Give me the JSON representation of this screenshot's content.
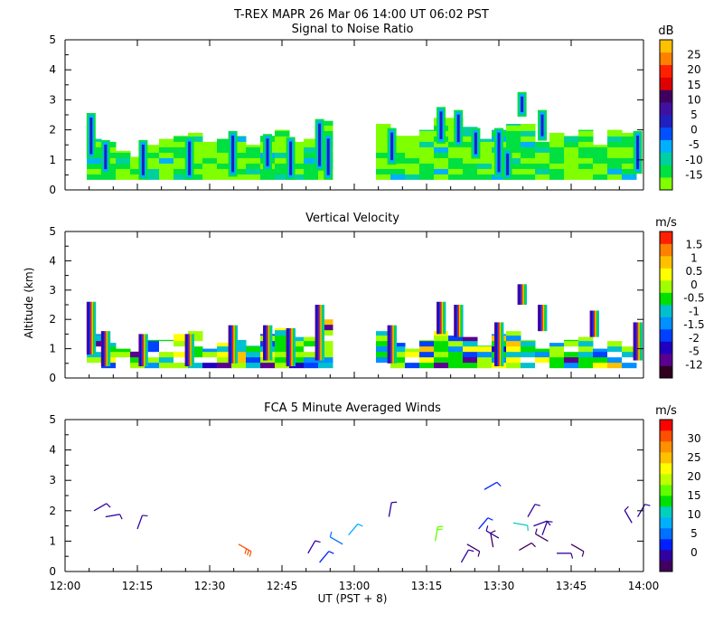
{
  "figure_title": "T-REX   MAPR 26 Mar 06   14:00 UT   06:02   PST",
  "x_axis": {
    "label": "UT  (PST + 8)",
    "range_hours": [
      12.0,
      14.0
    ],
    "tick_labels": [
      "12:00",
      "12:15",
      "12:30",
      "12:45",
      "13:00",
      "13:15",
      "13:30",
      "13:45",
      "14:00"
    ]
  },
  "y_axis_label": "Altitude (km)",
  "chart_data": [
    {
      "type": "heatmap",
      "title": "Signal to Noise Ratio",
      "units": "dB",
      "ylim": [
        0,
        5
      ],
      "ytick_labels": [
        "0",
        "1",
        "2",
        "3",
        "4",
        "5"
      ],
      "colorbar_labels": [
        "-15",
        "-10",
        "-5",
        "0",
        "5",
        "10",
        "15",
        "20",
        "25"
      ],
      "colors": [
        "#80ff00",
        "#00e040",
        "#00d0a0",
        "#00b0ff",
        "#0050ff",
        "#2020c0",
        "#4010a0",
        "#400060",
        "#e00000",
        "#ff2000",
        "#ff8000",
        "#ffc000"
      ],
      "data_gap_hours": [
        12.92,
        13.08
      ],
      "data_floor_km": 0.35,
      "columns": [
        {
          "t": 12.1,
          "top": 1.7
        },
        {
          "t": 12.15,
          "top": 1.6
        },
        {
          "t": 12.2,
          "top": 1.3
        },
        {
          "t": 12.25,
          "top": 1.1
        },
        {
          "t": 12.3,
          "top": 1.5
        },
        {
          "t": 12.35,
          "top": 1.7
        },
        {
          "t": 12.4,
          "top": 1.8
        },
        {
          "t": 12.45,
          "top": 1.9
        },
        {
          "t": 12.5,
          "top": 1.6
        },
        {
          "t": 12.55,
          "top": 1.7
        },
        {
          "t": 12.6,
          "top": 1.8
        },
        {
          "t": 12.65,
          "top": 1.5
        },
        {
          "t": 12.7,
          "top": 1.8
        },
        {
          "t": 12.75,
          "top": 2.0
        },
        {
          "t": 12.8,
          "top": 1.6
        },
        {
          "t": 12.85,
          "top": 1.7
        },
        {
          "t": 12.9,
          "top": 2.3
        },
        {
          "t": 13.1,
          "top": 2.2
        },
        {
          "t": 13.15,
          "top": 1.8
        },
        {
          "t": 13.2,
          "top": 1.8
        },
        {
          "t": 13.25,
          "top": 2.0
        },
        {
          "t": 13.3,
          "top": 2.4
        },
        {
          "t": 13.35,
          "top": 2.4
        },
        {
          "t": 13.4,
          "top": 2.1
        },
        {
          "t": 13.45,
          "top": 1.7
        },
        {
          "t": 13.5,
          "top": 2.0
        },
        {
          "t": 13.55,
          "top": 2.2
        },
        {
          "t": 13.6,
          "top": 2.2
        },
        {
          "t": 13.65,
          "top": 1.6
        },
        {
          "t": 13.7,
          "top": 1.9
        },
        {
          "t": 13.75,
          "top": 1.8
        },
        {
          "t": 13.8,
          "top": 2.0
        },
        {
          "t": 13.85,
          "top": 1.5
        },
        {
          "t": 13.9,
          "top": 2.0
        },
        {
          "t": 13.95,
          "top": 1.9
        }
      ],
      "plumes": [
        {
          "t": 12.09,
          "y0": 1.1,
          "y1": 2.5
        },
        {
          "t": 12.14,
          "y0": 0.6,
          "y1": 1.6
        },
        {
          "t": 12.27,
          "y0": 0.4,
          "y1": 1.6
        },
        {
          "t": 12.43,
          "y0": 0.4,
          "y1": 1.7
        },
        {
          "t": 12.58,
          "y0": 0.5,
          "y1": 1.9
        },
        {
          "t": 12.7,
          "y0": 0.7,
          "y1": 1.8
        },
        {
          "t": 12.78,
          "y0": 0.4,
          "y1": 1.7
        },
        {
          "t": 12.88,
          "y0": 0.7,
          "y1": 2.3
        },
        {
          "t": 12.91,
          "y0": 0.4,
          "y1": 1.8
        },
        {
          "t": 13.13,
          "y0": 0.9,
          "y1": 2.0
        },
        {
          "t": 13.3,
          "y0": 1.6,
          "y1": 2.7
        },
        {
          "t": 13.36,
          "y0": 1.5,
          "y1": 2.6
        },
        {
          "t": 13.42,
          "y0": 1.1,
          "y1": 2.0
        },
        {
          "t": 13.5,
          "y0": 0.5,
          "y1": 2.0
        },
        {
          "t": 13.53,
          "y0": 0.4,
          "y1": 1.3
        },
        {
          "t": 13.58,
          "y0": 2.5,
          "y1": 3.2
        },
        {
          "t": 13.65,
          "y0": 1.7,
          "y1": 2.6
        },
        {
          "t": 13.98,
          "y0": 0.6,
          "y1": 1.9
        }
      ]
    },
    {
      "type": "heatmap",
      "title": "Vertical Velocity",
      "units": "m/s",
      "ylim": [
        0,
        5
      ],
      "ytick_labels": [
        "0",
        "1",
        "2",
        "3",
        "4",
        "5"
      ],
      "colorbar_labels": [
        "-12",
        "-5",
        "-2",
        "-1.5",
        "-1",
        "-0.5",
        "0",
        "0.5",
        "1",
        "1.5"
      ],
      "colors": [
        "#300020",
        "#5a0090",
        "#2000c0",
        "#0040ff",
        "#0090ff",
        "#00c0d0",
        "#00e000",
        "#a0ff00",
        "#ffff00",
        "#ffc000",
        "#ff8000",
        "#ff2000"
      ],
      "data_gap_hours": [
        12.92,
        13.08
      ],
      "data_floor_km": 0.35,
      "columns": [
        {
          "t": 12.1,
          "top": 1.5
        },
        {
          "t": 12.15,
          "top": 1.2
        },
        {
          "t": 12.2,
          "top": 1.0
        },
        {
          "t": 12.25,
          "top": 0.9
        },
        {
          "t": 12.3,
          "top": 1.3
        },
        {
          "t": 12.35,
          "top": 1.3
        },
        {
          "t": 12.4,
          "top": 1.5
        },
        {
          "t": 12.45,
          "top": 1.6
        },
        {
          "t": 12.5,
          "top": 1.0
        },
        {
          "t": 12.55,
          "top": 1.2
        },
        {
          "t": 12.6,
          "top": 1.3
        },
        {
          "t": 12.65,
          "top": 1.1
        },
        {
          "t": 12.7,
          "top": 1.5
        },
        {
          "t": 12.75,
          "top": 1.7
        },
        {
          "t": 12.8,
          "top": 1.4
        },
        {
          "t": 12.85,
          "top": 1.4
        },
        {
          "t": 12.9,
          "top": 2.0
        },
        {
          "t": 13.1,
          "top": 1.6
        },
        {
          "t": 13.15,
          "top": 1.2
        },
        {
          "t": 13.2,
          "top": 1.0
        },
        {
          "t": 13.25,
          "top": 1.3
        },
        {
          "t": 13.3,
          "top": 1.6
        },
        {
          "t": 13.35,
          "top": 1.6
        },
        {
          "t": 13.4,
          "top": 1.4
        },
        {
          "t": 13.45,
          "top": 1.1
        },
        {
          "t": 13.5,
          "top": 1.5
        },
        {
          "t": 13.55,
          "top": 1.6
        },
        {
          "t": 13.6,
          "top": 1.3
        },
        {
          "t": 13.65,
          "top": 1.0
        },
        {
          "t": 13.7,
          "top": 1.2
        },
        {
          "t": 13.75,
          "top": 1.3
        },
        {
          "t": 13.8,
          "top": 1.4
        },
        {
          "t": 13.85,
          "top": 1.0
        },
        {
          "t": 13.9,
          "top": 1.4
        },
        {
          "t": 13.95,
          "top": 1.2
        }
      ],
      "plumes": [
        {
          "t": 12.09,
          "y0": 0.8,
          "y1": 2.6
        },
        {
          "t": 12.14,
          "y0": 0.4,
          "y1": 1.6
        },
        {
          "t": 12.27,
          "y0": 0.4,
          "y1": 1.5
        },
        {
          "t": 12.43,
          "y0": 0.4,
          "y1": 1.5
        },
        {
          "t": 12.58,
          "y0": 0.5,
          "y1": 1.8
        },
        {
          "t": 12.7,
          "y0": 0.6,
          "y1": 1.8
        },
        {
          "t": 12.78,
          "y0": 0.4,
          "y1": 1.7
        },
        {
          "t": 12.88,
          "y0": 0.6,
          "y1": 2.5
        },
        {
          "t": 13.13,
          "y0": 0.5,
          "y1": 1.8
        },
        {
          "t": 13.3,
          "y0": 1.5,
          "y1": 2.6
        },
        {
          "t": 13.36,
          "y0": 1.4,
          "y1": 2.5
        },
        {
          "t": 13.5,
          "y0": 0.4,
          "y1": 1.9
        },
        {
          "t": 13.58,
          "y0": 2.5,
          "y1": 3.2
        },
        {
          "t": 13.65,
          "y0": 1.6,
          "y1": 2.5
        },
        {
          "t": 13.83,
          "y0": 1.4,
          "y1": 2.3
        },
        {
          "t": 13.98,
          "y0": 0.6,
          "y1": 1.9
        }
      ]
    },
    {
      "type": "scatter",
      "title": "FCA 5 Minute Averaged Winds",
      "units": "m/s",
      "ylim": [
        0,
        5
      ],
      "ytick_labels": [
        "0",
        "1",
        "2",
        "3",
        "4",
        "5"
      ],
      "colorbar_labels": [
        "0",
        "5",
        "10",
        "15",
        "20",
        "25",
        "30"
      ],
      "colors": [
        "#400060",
        "#3000a0",
        "#0020ff",
        "#0070ff",
        "#00b0ff",
        "#00d0c0",
        "#00e000",
        "#60ff00",
        "#c0ff00",
        "#ffff00",
        "#ffc000",
        "#ff9000",
        "#ff5000",
        "#ff0000"
      ],
      "barbs": [
        {
          "t": 12.1,
          "alt": 2.0,
          "speed": 3,
          "dir": 60
        },
        {
          "t": 12.14,
          "alt": 1.8,
          "speed": 3,
          "dir": 80
        },
        {
          "t": 12.25,
          "alt": 1.4,
          "speed": 3,
          "dir": 20
        },
        {
          "t": 12.6,
          "alt": 0.9,
          "speed": 26,
          "dir": 120
        },
        {
          "t": 12.84,
          "alt": 0.6,
          "speed": 4,
          "dir": 30
        },
        {
          "t": 12.88,
          "alt": 0.3,
          "speed": 5,
          "dir": 40
        },
        {
          "t": 12.96,
          "alt": 0.9,
          "speed": 8,
          "dir": 300
        },
        {
          "t": 12.98,
          "alt": 1.2,
          "speed": 10,
          "dir": 40
        },
        {
          "t": 13.12,
          "alt": 1.8,
          "speed": 4,
          "dir": 10
        },
        {
          "t": 13.28,
          "alt": 1.0,
          "speed": 15,
          "dir": 10
        },
        {
          "t": 13.37,
          "alt": 0.3,
          "speed": 3,
          "dir": 30
        },
        {
          "t": 13.39,
          "alt": 0.9,
          "speed": 2,
          "dir": 120
        },
        {
          "t": 13.43,
          "alt": 1.4,
          "speed": 5,
          "dir": 40
        },
        {
          "t": 13.45,
          "alt": 2.7,
          "speed": 6,
          "dir": 60
        },
        {
          "t": 13.48,
          "alt": 0.8,
          "speed": 2,
          "dir": 350
        },
        {
          "t": 13.5,
          "alt": 1.1,
          "speed": 3,
          "dir": 300
        },
        {
          "t": 13.55,
          "alt": 1.6,
          "speed": 12,
          "dir": 100
        },
        {
          "t": 13.57,
          "alt": 0.7,
          "speed": 2,
          "dir": 60
        },
        {
          "t": 13.6,
          "alt": 1.8,
          "speed": 3,
          "dir": 30
        },
        {
          "t": 13.62,
          "alt": 1.5,
          "speed": 3,
          "dir": 70
        },
        {
          "t": 13.65,
          "alt": 1.2,
          "speed": 4,
          "dir": 20
        },
        {
          "t": 13.67,
          "alt": 1.0,
          "speed": 2,
          "dir": 300
        },
        {
          "t": 13.7,
          "alt": 0.6,
          "speed": 3,
          "dir": 90
        },
        {
          "t": 13.75,
          "alt": 0.9,
          "speed": 2,
          "dir": 120
        },
        {
          "t": 13.98,
          "alt": 1.8,
          "speed": 3,
          "dir": 30
        },
        {
          "t": 13.96,
          "alt": 1.6,
          "speed": 4,
          "dir": 330
        }
      ]
    }
  ]
}
